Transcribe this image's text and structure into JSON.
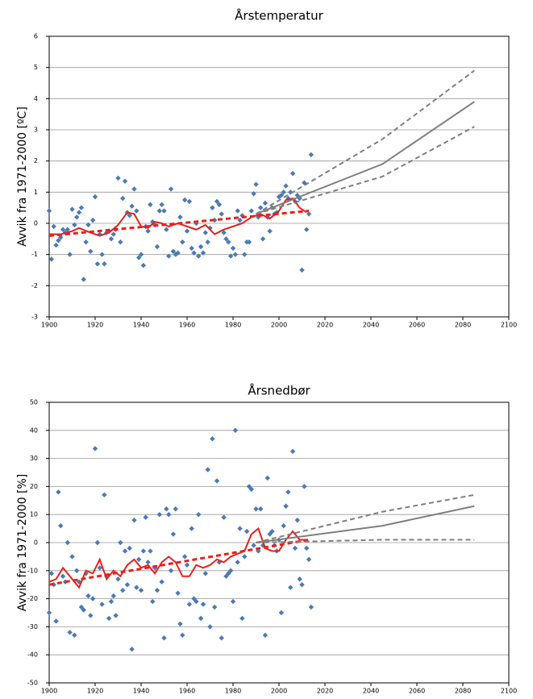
{
  "chart_data": [
    {
      "type": "scatter",
      "title": "Årstemperatur",
      "ylabel": "Avvik fra 1971-2000 [ºC]",
      "xlim": [
        1900,
        2100
      ],
      "xticks": [
        1900,
        1920,
        1940,
        1960,
        1980,
        2000,
        2020,
        2040,
        2060,
        2080,
        2100
      ],
      "ylim": [
        -3,
        6
      ],
      "yticks": [
        -3,
        -2,
        -1,
        0,
        1,
        2,
        3,
        4,
        5,
        6
      ],
      "grid": true,
      "series": [
        {
          "type": "scatter",
          "color": "#4a7ab5",
          "x": [
            1900,
            1901,
            1902,
            1903,
            1904,
            1905,
            1906,
            1907,
            1908,
            1909,
            1910,
            1911,
            1912,
            1913,
            1914,
            1915,
            1916,
            1917,
            1918,
            1919,
            1920,
            1921,
            1922,
            1923,
            1924,
            1925,
            1926,
            1927,
            1928,
            1929,
            1930,
            1931,
            1932,
            1933,
            1934,
            1935,
            1936,
            1937,
            1938,
            1939,
            1940,
            1941,
            1942,
            1943,
            1944,
            1945,
            1946,
            1947,
            1948,
            1949,
            1950,
            1951,
            1952,
            1953,
            1954,
            1955,
            1956,
            1957,
            1958,
            1959,
            1960,
            1961,
            1962,
            1963,
            1964,
            1965,
            1966,
            1967,
            1968,
            1969,
            1970,
            1971,
            1972,
            1973,
            1974,
            1975,
            1976,
            1977,
            1978,
            1979,
            1980,
            1981,
            1982,
            1983,
            1984,
            1985,
            1986,
            1987,
            1988,
            1989,
            1990,
            1991,
            1992,
            1993,
            1994,
            1995,
            1996,
            1997,
            1998,
            1999,
            2000,
            2001,
            2002,
            2003,
            2004,
            2005,
            2006,
            2007,
            2008,
            2009,
            2010,
            2011,
            2012,
            2013,
            2014
          ],
          "values": [
            0.4,
            -1.15,
            -0.1,
            -0.7,
            -0.55,
            -0.45,
            -0.2,
            -0.3,
            -0.2,
            -1.0,
            0.45,
            -0.05,
            0.2,
            0.35,
            0.5,
            -1.8,
            -0.6,
            -0.05,
            -0.9,
            0.1,
            0.85,
            -1.3,
            -0.35,
            -1.0,
            -1.3,
            -0.3,
            -0.25,
            -0.5,
            -0.35,
            -0.2,
            1.45,
            -0.6,
            0.8,
            1.35,
            0.35,
            0.25,
            0.55,
            1.1,
            0.4,
            -1.1,
            -1.0,
            -1.35,
            -0.1,
            -0.25,
            0.6,
            0.05,
            -0.05,
            -0.75,
            0.4,
            0.6,
            0.4,
            -0.2,
            -1.05,
            1.1,
            -0.9,
            -1.0,
            -0.95,
            0.2,
            -0.6,
            0.75,
            -0.25,
            0.7,
            -0.8,
            -0.95,
            0.0,
            -1.05,
            -0.75,
            -0.95,
            -0.3,
            -0.6,
            -0.15,
            0.5,
            0.1,
            0.7,
            0.6,
            0.3,
            -0.3,
            -0.5,
            -0.6,
            -1.05,
            -0.8,
            -1.0,
            0.4,
            0.1,
            0.25,
            -1.0,
            -0.6,
            -0.6,
            0.4,
            0.95,
            1.25,
            0.2,
            0.5,
            -0.5,
            0.65,
            0.2,
            -0.25,
            0.5,
            0.3,
            0.35,
            0.85,
            0.9,
            1.0,
            1.2,
            0.8,
            1.0,
            1.6,
            0.7,
            0.9,
            0.8,
            -1.5,
            1.3,
            -0.2,
            0.3,
            2.2
          ]
        },
        {
          "type": "line",
          "color": "#e8201e",
          "width": 2,
          "x": [
            1900,
            1905,
            1910,
            1913,
            1918,
            1922,
            1926,
            1930,
            1934,
            1937,
            1940,
            1943,
            1946,
            1949,
            1952,
            1956,
            1960,
            1964,
            1968,
            1972,
            1976,
            1980,
            1984,
            1988,
            1992,
            1996,
            2000,
            2003,
            2006,
            2009,
            2012
          ],
          "values": [
            -0.35,
            -0.35,
            -0.25,
            -0.15,
            -0.3,
            -0.4,
            -0.3,
            -0.05,
            0.35,
            0.3,
            -0.1,
            -0.15,
            0.05,
            0.0,
            -0.1,
            0.0,
            -0.1,
            -0.2,
            -0.05,
            -0.35,
            -0.2,
            -0.1,
            0.0,
            0.2,
            0.3,
            0.15,
            0.4,
            0.75,
            0.8,
            0.5,
            0.35
          ]
        },
        {
          "type": "line",
          "color": "#e8201e",
          "width": 3,
          "dashed": true,
          "x": [
            1900,
            2013
          ],
          "values": [
            -0.4,
            0.4
          ]
        },
        {
          "type": "line",
          "color": "#7f7f7f",
          "width": 2,
          "x": [
            1990,
            2045,
            2085
          ],
          "values": [
            0.3,
            1.9,
            3.9
          ]
        },
        {
          "type": "line",
          "color": "#7f7f7f",
          "width": 2,
          "dashed": true,
          "x": [
            1990,
            2045,
            2085
          ],
          "values": [
            0.3,
            2.7,
            4.9
          ]
        },
        {
          "type": "line",
          "color": "#7f7f7f",
          "width": 2,
          "dashed": true,
          "x": [
            1990,
            2045,
            2085
          ],
          "values": [
            0.3,
            1.5,
            3.1
          ]
        }
      ]
    },
    {
      "type": "scatter",
      "title": "Årsnedbør",
      "ylabel": "Avvik fra 1971-2000 [%]",
      "xlim": [
        1900,
        2100
      ],
      "xticks": [
        1900,
        1920,
        1940,
        1960,
        1980,
        2000,
        2020,
        2040,
        2060,
        2080,
        2100
      ],
      "ylim": [
        -50,
        50
      ],
      "yticks": [
        -50,
        -40,
        -30,
        -20,
        -10,
        0,
        10,
        20,
        30,
        40,
        50
      ],
      "grid": true,
      "series": [
        {
          "type": "scatter",
          "color": "#4a7ab5",
          "x": [
            1900,
            1901,
            1902,
            1903,
            1904,
            1905,
            1906,
            1907,
            1908,
            1909,
            1910,
            1911,
            1912,
            1913,
            1914,
            1915,
            1916,
            1917,
            1918,
            1919,
            1920,
            1921,
            1922,
            1923,
            1924,
            1925,
            1926,
            1927,
            1928,
            1929,
            1930,
            1931,
            1932,
            1933,
            1934,
            1935,
            1936,
            1937,
            1938,
            1939,
            1940,
            1941,
            1942,
            1943,
            1944,
            1945,
            1946,
            1947,
            1948,
            1949,
            1950,
            1951,
            1952,
            1953,
            1954,
            1955,
            1956,
            1957,
            1958,
            1959,
            1960,
            1961,
            1962,
            1963,
            1964,
            1965,
            1966,
            1967,
            1968,
            1969,
            1970,
            1971,
            1972,
            1973,
            1974,
            1975,
            1976,
            1977,
            1978,
            1979,
            1980,
            1981,
            1982,
            1983,
            1984,
            1985,
            1986,
            1987,
            1988,
            1989,
            1990,
            1991,
            1992,
            1993,
            1994,
            1995,
            1996,
            1997,
            1998,
            1999,
            2000,
            2001,
            2002,
            2003,
            2004,
            2005,
            2006,
            2007,
            2008,
            2009,
            2010,
            2011,
            2012,
            2013,
            2014
          ],
          "values": [
            -25,
            -11,
            -15,
            -28,
            18,
            6,
            -12,
            -14,
            0,
            -32,
            -5,
            -33,
            -10,
            -14,
            -23,
            -24,
            -11,
            -19,
            -26,
            -20,
            33.5,
            0,
            -9,
            -22,
            17,
            -12,
            -27,
            -21,
            -19,
            -26,
            -13,
            0,
            -17,
            -3,
            -15,
            -2,
            -38,
            8,
            -16,
            -6,
            -17,
            -3,
            9,
            -7,
            -3,
            -21,
            -9,
            -17,
            10,
            -14,
            -34,
            12,
            10,
            -10,
            3,
            12,
            -18,
            -29,
            -33,
            -5,
            -8,
            -22,
            5,
            -20,
            -21,
            10,
            -27,
            -22,
            -11,
            26,
            -30,
            37,
            -23,
            22,
            -7,
            -34,
            9,
            -12,
            -11,
            -10,
            -21,
            40,
            -7,
            5,
            -27,
            -5,
            4,
            20,
            19,
            -1,
            12,
            -3,
            12,
            -1,
            -33,
            23,
            3,
            4,
            -1,
            -3,
            1,
            -25,
            6,
            13,
            18,
            -16,
            32.5,
            -2,
            8,
            -13,
            -15,
            20,
            -2,
            -6,
            -23
          ]
        },
        {
          "type": "line",
          "color": "#e8201e",
          "width": 2,
          "x": [
            1900,
            1903,
            1906,
            1909,
            1913,
            1916,
            1919,
            1922,
            1925,
            1928,
            1931,
            1934,
            1937,
            1940,
            1943,
            1946,
            1949,
            1952,
            1955,
            1958,
            1961,
            1964,
            1967,
            1970,
            1973,
            1976,
            1979,
            1982,
            1985,
            1988,
            1991,
            1994,
            1997,
            2000,
            2003,
            2006,
            2009,
            2012
          ],
          "values": [
            -14,
            -13,
            -9,
            -12,
            -16,
            -10,
            -11,
            -6,
            -13,
            -10,
            -12,
            -8,
            -6,
            -9,
            -8,
            -11,
            -7,
            -5,
            -7,
            -12,
            -12,
            -8,
            -9,
            -8,
            -6,
            -7,
            -5,
            -4,
            -3,
            3,
            5,
            -2,
            -3,
            -3,
            1,
            4,
            1,
            1
          ]
        },
        {
          "type": "line",
          "color": "#e8201e",
          "width": 3,
          "dashed": true,
          "x": [
            1900,
            2013
          ],
          "values": [
            -15,
            1
          ]
        },
        {
          "type": "line",
          "color": "#7f7f7f",
          "width": 2,
          "x": [
            1990,
            2045,
            2085
          ],
          "values": [
            0,
            6,
            13
          ]
        },
        {
          "type": "line",
          "color": "#7f7f7f",
          "width": 2,
          "dashed": true,
          "x": [
            1990,
            2045,
            2085
          ],
          "values": [
            0,
            11,
            17
          ]
        },
        {
          "type": "line",
          "color": "#7f7f7f",
          "width": 2,
          "dashed": true,
          "x": [
            1990,
            2045,
            2085
          ],
          "values": [
            0,
            1,
            1
          ]
        }
      ]
    }
  ]
}
